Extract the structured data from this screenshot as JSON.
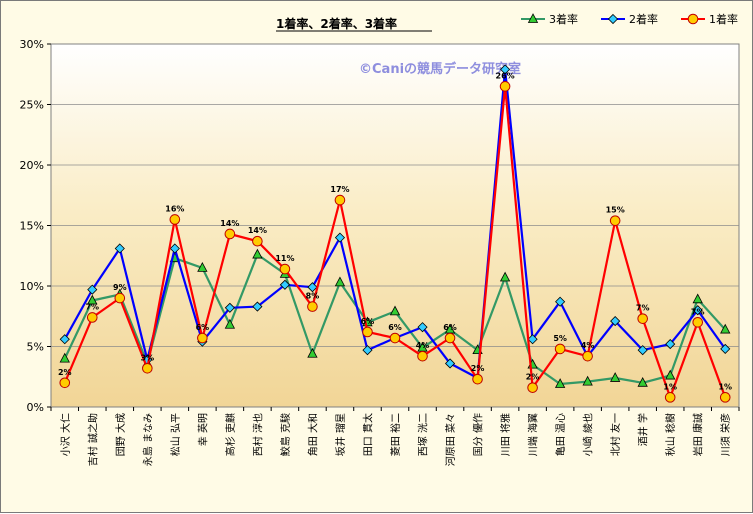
{
  "chart_data": {
    "type": "line",
    "title": "1着率、2着率、3着率",
    "watermark": "©Caniの競馬データ研究室",
    "ylim": [
      0,
      30
    ],
    "yticks": [
      "0%",
      "5%",
      "10%",
      "15%",
      "20%",
      "25%",
      "30%"
    ],
    "grid": true,
    "legend_position": "top-right",
    "categories": [
      "小沢 大仁",
      "吉村 誠之助",
      "団野 大成",
      "永島 まなみ",
      "松山 弘平",
      "幸 英明",
      "高杉 吏麒",
      "西村 淳也",
      "鮫島 克駿",
      "角田 大和",
      "坂井 瑠星",
      "田口 貫太",
      "菱田 裕二",
      "西塚 洸二",
      "河原田 菜々",
      "国分 優作",
      "川田 将雅",
      "川端 海翼",
      "亀田 温心",
      "小崎 綾也",
      "北村 友一",
      "酒井 学",
      "秋山 稔樹",
      "岩田 康誠",
      "川須 栄彦"
    ],
    "series": [
      {
        "name": "3着率",
        "color": "#339966",
        "marker": "triangle",
        "marker_fill": "#33cc33",
        "values": [
          4.0,
          8.8,
          9.3,
          3.6,
          12.3,
          11.5,
          6.8,
          12.6,
          11.0,
          4.4,
          10.3,
          7.0,
          7.9,
          4.9,
          6.4,
          4.7,
          10.7,
          3.5,
          1.9,
          2.1,
          2.4,
          2.0,
          2.6,
          8.9,
          6.4
        ]
      },
      {
        "name": "2着率",
        "color": "#0000ff",
        "marker": "diamond",
        "marker_fill": "#33ccff",
        "values": [
          5.6,
          9.7,
          13.1,
          3.9,
          13.1,
          5.4,
          8.2,
          8.3,
          10.1,
          9.9,
          14.0,
          4.7,
          5.7,
          6.6,
          3.6,
          2.4,
          27.9,
          5.6,
          8.7,
          4.2,
          7.1,
          4.7,
          5.2,
          8.0,
          4.8
        ]
      },
      {
        "name": "1着率",
        "color": "#ff0000",
        "marker": "circle",
        "marker_fill": "#ffcc00",
        "values": [
          2.0,
          7.4,
          9.0,
          3.2,
          15.5,
          5.7,
          14.3,
          13.7,
          11.4,
          8.3,
          17.1,
          6.2,
          5.7,
          4.2,
          5.7,
          2.3,
          26.5,
          1.6,
          4.8,
          4.2,
          15.4,
          7.3,
          0.8,
          7.0,
          0.8
        ]
      }
    ],
    "data_labels_1st": [
      "2%",
      "7%",
      "9%",
      "3%",
      "16%",
      "6%",
      "14%",
      "14%",
      "11%",
      "8%",
      "17%",
      "6%",
      "6%",
      "4%",
      "6%",
      "2%",
      "26%",
      "2%",
      "5%",
      "4%",
      "15%",
      "7%",
      "1%",
      "7%",
      "1%"
    ]
  }
}
